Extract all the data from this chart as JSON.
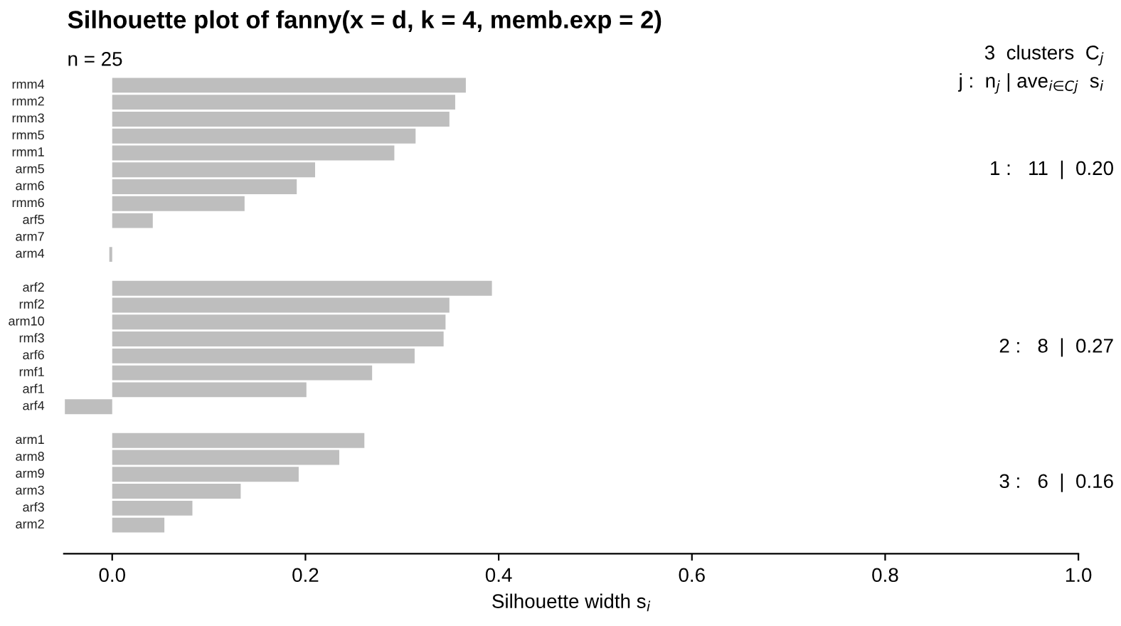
{
  "chart_data": {
    "type": "bar",
    "orientation": "horizontal",
    "title": "Silhouette plot of fanny(x = d, k = 4, memb.exp = 2)",
    "xlabel": "Silhouette width s$_{i}$",
    "categories": [
      "rmm4",
      "rmm2",
      "rmm3",
      "rmm5",
      "rmm1",
      "arm5",
      "arm6",
      "rmm6",
      "arf5",
      "arm7",
      "arm4",
      null,
      "arf2",
      "rmf2",
      "arm10",
      "rmf3",
      "arf6",
      "rmf1",
      "arf1",
      "arf4",
      null,
      "arm1",
      "arm8",
      "arm9",
      "arm3",
      "arf3",
      "arm2"
    ],
    "values": [
      0.366,
      0.355,
      0.349,
      0.314,
      0.292,
      0.21,
      0.191,
      0.137,
      0.042,
      0,
      -0.003,
      null,
      0.393,
      0.349,
      0.345,
      0.343,
      0.313,
      0.269,
      0.201,
      -0.049,
      null,
      0.261,
      0.235,
      0.193,
      0.133,
      0.083,
      0.054
    ],
    "color": "#bebebe",
    "xlim": [
      -0.05,
      1.0
    ],
    "xticks": [
      {
        "value": 0,
        "label": "0.0"
      },
      0.2,
      0.4,
      0.6,
      0.8,
      {
        "value": 1,
        "label": "1.0"
      }
    ],
    "grid": false,
    "legend": false,
    "annotations": [
      "n = 25",
      "3  clusters  C$_{j}$",
      "j :  n$_{j}$ | ave$_{i∈Cj}$  s$_{i}$",
      "1 :   11  |  0.20",
      "2 :   8  |  0.27",
      "3 :   6  |  0.16"
    ]
  }
}
